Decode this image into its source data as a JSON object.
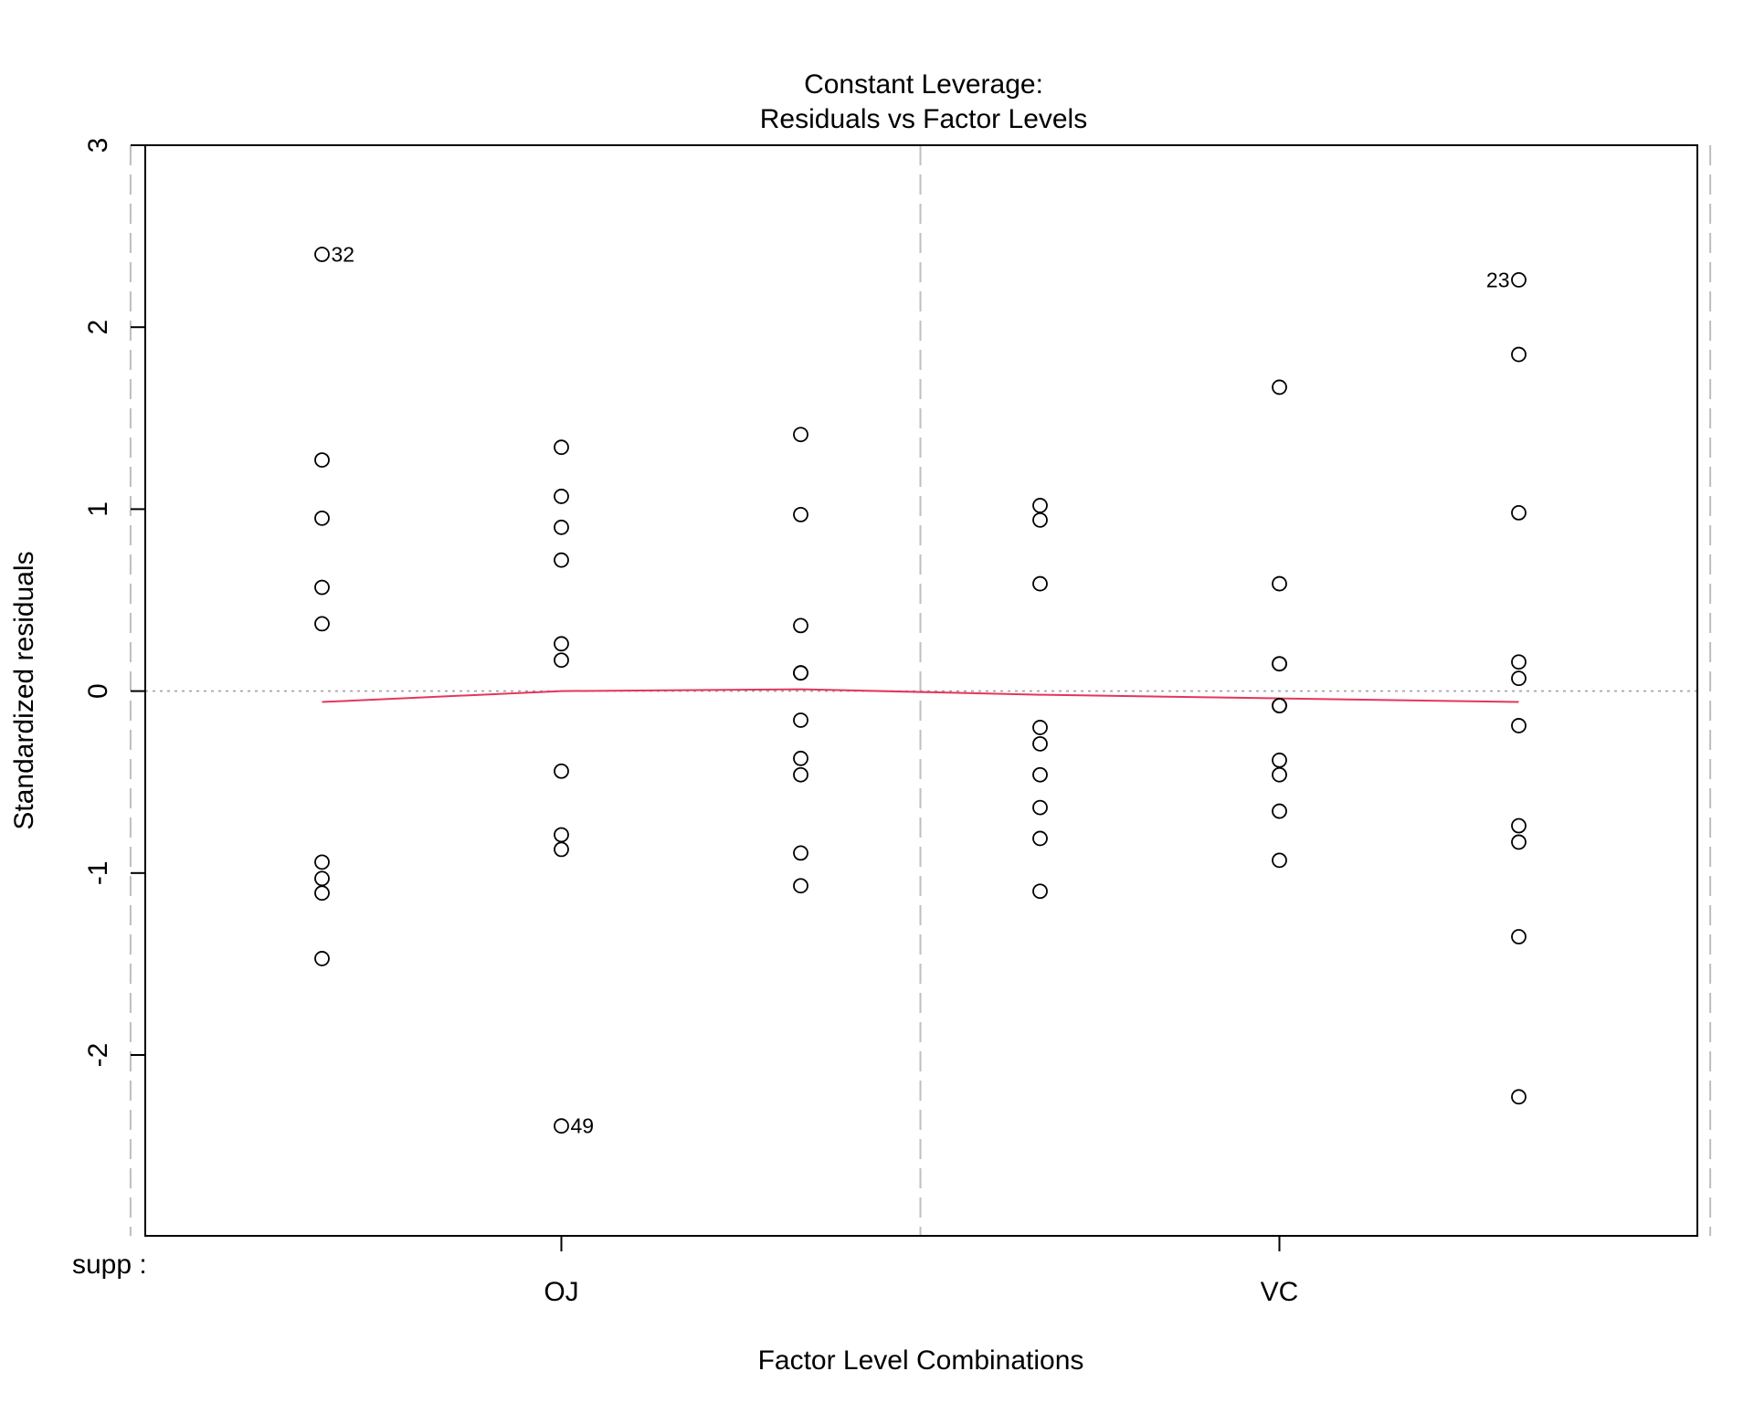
{
  "chart_data": {
    "type": "scatter",
    "title": "Constant Leverage:",
    "subtitle": "Residuals vs Factor Levels",
    "xlabel": "Factor Level Combinations",
    "ylabel": "Standardized residuals",
    "factor_label": "supp :",
    "ylim": [
      -3,
      3
    ],
    "yticks": [
      -2,
      -1,
      0,
      1,
      2,
      3
    ],
    "factor_levels": [
      "OJ",
      "VC"
    ],
    "grid": false,
    "colors": {
      "points": "#000000",
      "smooth": "#E3375A",
      "reference": "#A0A0A0",
      "separator": "#BEBEBE"
    },
    "groups": [
      {
        "x": 1,
        "values": [
          2.4,
          1.27,
          0.95,
          0.57,
          0.37,
          -0.94,
          -1.03,
          -1.11,
          -1.47
        ]
      },
      {
        "x": 2,
        "values": [
          1.34,
          1.07,
          0.9,
          0.72,
          0.26,
          0.17,
          -0.44,
          -0.79,
          -0.87,
          -2.39
        ]
      },
      {
        "x": 3,
        "values": [
          1.41,
          0.97,
          0.36,
          0.1,
          0.1,
          -0.16,
          -0.37,
          -0.46,
          -0.89,
          -1.07
        ]
      },
      {
        "x": 4,
        "values": [
          1.02,
          0.94,
          0.59,
          -0.2,
          -0.29,
          -0.46,
          -0.64,
          -0.81,
          -1.1
        ]
      },
      {
        "x": 5,
        "values": [
          1.67,
          0.59,
          0.15,
          0.15,
          -0.08,
          -0.08,
          -0.38,
          -0.46,
          -0.66,
          -0.93
        ]
      },
      {
        "x": 6,
        "values": [
          2.26,
          1.85,
          0.98,
          0.16,
          0.07,
          -0.19,
          -0.74,
          -0.83,
          -1.35,
          -2.23
        ]
      }
    ],
    "labeled_points": [
      {
        "label": "32",
        "x": 1,
        "y": 2.4,
        "side": "right"
      },
      {
        "label": "49",
        "x": 2,
        "y": -2.39,
        "side": "right"
      },
      {
        "label": "23",
        "x": 6,
        "y": 2.26,
        "side": "left"
      }
    ],
    "smooth_line": {
      "x": [
        1,
        2,
        3,
        4,
        5,
        6
      ],
      "y": [
        -0.06,
        0.0,
        0.01,
        -0.02,
        -0.04,
        -0.06
      ]
    },
    "reference_line_y": 0
  }
}
